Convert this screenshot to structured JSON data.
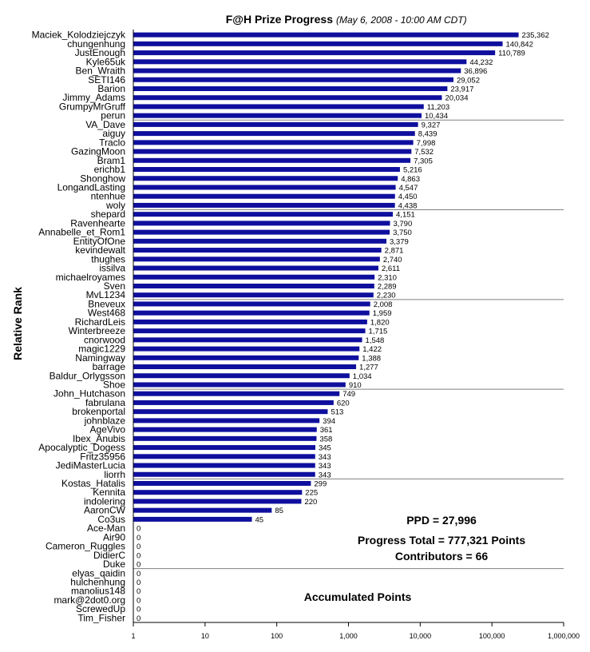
{
  "chart_data": {
    "type": "bar",
    "orientation": "horizontal",
    "title": "F@H Prize Progress",
    "subtitle": "(May 6, 2008 -  10:00 AM CDT)",
    "xlabel": "Accumulated Points",
    "ylabel": "Relative Rank",
    "x_scale": "log",
    "xlim": [
      1,
      1000000
    ],
    "x_ticks": [
      "1",
      "10",
      "100",
      "1,000",
      "10,000",
      "100,000",
      "1,000,000"
    ],
    "grid": "horizontal lines every 10 rows",
    "bar_color": "#0f0f9e",
    "categories": [
      "Maciek_Kolodziejczyk",
      "chungenhung",
      "JustEnough",
      "Kyle65uk",
      "Ben_Wraith",
      "SETI146",
      "Barion",
      "Jimmy_Adams",
      "GrumpyMrGruff",
      "perun",
      "VA_Dave",
      "aiguy",
      "Traclo",
      "GazingMoon",
      "Bram1",
      "erichb1",
      "Shonghow",
      "LongandLasting",
      "ntenhue",
      "woly",
      "shepard",
      "Ravenhearte",
      "Annabelle_et_Rom1",
      "EntityOfOne",
      "kevindewalt",
      "thughes",
      "issilva",
      "michaelroyames",
      "Sven",
      "MvL1234",
      "Bneveux",
      "West468",
      "RichardLeis",
      "Winterbreeze",
      "cnorwood",
      "magic1229",
      "Namingway",
      "barrage",
      "Baldur_Orlygsson",
      "Shoe",
      "John_Hutchason",
      "fabrulana",
      "brokenportal",
      "johnblaze",
      "AgeVivo",
      "Ibex_Anubis",
      "Apocalyptic_Dogess",
      "Fritz35956",
      "JediMasterLucia",
      "liorrh",
      "Kostas_Hatalis",
      "Kennita",
      "indolering",
      "AaronCW",
      "Co3us",
      "Ace-Man",
      "Air90",
      "Cameron_Ruggles",
      "DidierC",
      "Duke",
      "elyas_qaidin",
      "hulchenhung",
      "manolius148",
      "mark@2dot0.org",
      "ScrewedUp",
      "Tim_Fisher"
    ],
    "values": [
      235362,
      140842,
      110789,
      44232,
      36896,
      29052,
      23917,
      20034,
      11203,
      10434,
      9327,
      8439,
      7998,
      7532,
      7305,
      5216,
      4863,
      4547,
      4450,
      4438,
      4151,
      3790,
      3750,
      3379,
      2871,
      2740,
      2611,
      2310,
      2289,
      2230,
      2008,
      1959,
      1820,
      1715,
      1548,
      1422,
      1388,
      1277,
      1034,
      910,
      749,
      620,
      513,
      394,
      361,
      358,
      345,
      343,
      343,
      343,
      299,
      225,
      220,
      85,
      45,
      0,
      0,
      0,
      0,
      0,
      0,
      0,
      0,
      0,
      0,
      0
    ],
    "value_labels": [
      "235,362",
      "140,842",
      "110,789",
      "44,232",
      "36,896",
      "29,052",
      "23,917",
      "20,034",
      "11,203",
      "10,434",
      "9,327",
      "8,439",
      "7,998",
      "7,532",
      "7,305",
      "5,216",
      "4,863",
      "4,547",
      "4,450",
      "4,438",
      "4,151",
      "3,790",
      "3,750",
      "3,379",
      "2,871",
      "2,740",
      "2,611",
      "2,310",
      "2,289",
      "2,230",
      "2,008",
      "1,959",
      "1,820",
      "1,715",
      "1,548",
      "1,422",
      "1,388",
      "1,277",
      "1,034",
      "910",
      "749",
      "620",
      "513",
      "394",
      "361",
      "358",
      "345",
      "343",
      "343",
      "343",
      "299",
      "225",
      "220",
      "85",
      "45",
      "0",
      "0",
      "0",
      "0",
      "0",
      "0",
      "0",
      "0",
      "0",
      "0",
      "0"
    ],
    "annotations": [
      "PPD = 27,996",
      "Progress Total = 777,321 Points",
      "Contributors = 66"
    ]
  }
}
